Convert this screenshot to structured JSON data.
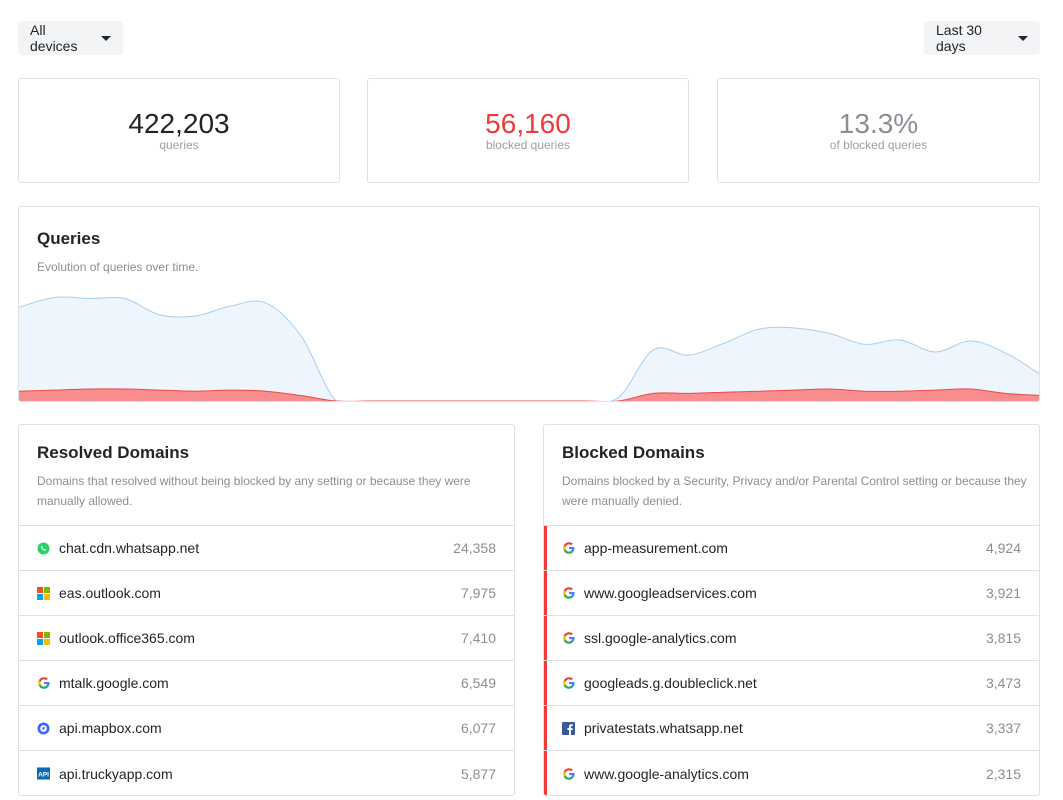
{
  "filters": {
    "devices_label": "All devices",
    "range_label": "Last 30 days"
  },
  "stats": [
    {
      "value": "422,203",
      "label": "queries",
      "color": "#212529"
    },
    {
      "value": "56,160",
      "label": "blocked queries",
      "color": "#ee3a3a"
    },
    {
      "value": "13.3%",
      "label": "of blocked queries",
      "color": "#8a8f94"
    }
  ],
  "queries_chart": {
    "title": "Queries",
    "subtitle": "Evolution of queries over time.",
    "colors": {
      "total_fill": "#eef5fd",
      "total_line": "#a7cff0",
      "blocked_fill": "#f98c8c",
      "blocked_line": "#e94a4a"
    },
    "chart_data": {
      "type": "area",
      "series": [
        {
          "values": [
            0.86,
            0.95,
            0.94,
            0.94,
            0.79,
            0.78,
            0.87,
            0.9,
            0.6,
            0.0,
            0.0,
            0.0,
            0.0,
            0.0,
            0.0,
            0.0,
            0.0,
            0.03,
            0.47,
            0.42,
            0.53,
            0.66,
            0.67,
            0.62,
            0.52,
            0.56,
            0.45,
            0.55,
            0.44,
            0.24
          ]
        },
        {
          "values": [
            0.09,
            0.1,
            0.11,
            0.11,
            0.1,
            0.09,
            0.1,
            0.09,
            0.05,
            0.0,
            0.0,
            0.0,
            0.0,
            0.0,
            0.0,
            0.0,
            0.0,
            0.0,
            0.07,
            0.07,
            0.08,
            0.09,
            0.1,
            0.11,
            0.09,
            0.09,
            0.1,
            0.11,
            0.07,
            0.05
          ]
        }
      ]
    }
  },
  "resolved": {
    "title": "Resolved Domains",
    "subtitle": "Domains that resolved without being blocked by any setting or because they were manually allowed.",
    "items": [
      {
        "domain": "chat.cdn.whatsapp.net",
        "count": "24,358",
        "icon": "whatsapp-icon"
      },
      {
        "domain": "eas.outlook.com",
        "count": "7,975",
        "icon": "microsoft-icon"
      },
      {
        "domain": "outlook.office365.com",
        "count": "7,410",
        "icon": "microsoft-icon"
      },
      {
        "domain": "mtalk.google.com",
        "count": "6,549",
        "icon": "google-icon"
      },
      {
        "domain": "api.mapbox.com",
        "count": "6,077",
        "icon": "mapbox-icon"
      },
      {
        "domain": "api.truckyapp.com",
        "count": "5,877",
        "icon": "api-icon"
      }
    ]
  },
  "blocked": {
    "title": "Blocked Domains",
    "subtitle": "Domains blocked by a Security, Privacy and/or Parental Control setting or because they were manually denied.",
    "items": [
      {
        "domain": "app-measurement.com",
        "count": "4,924",
        "icon": "google-icon"
      },
      {
        "domain": "www.googleadservices.com",
        "count": "3,921",
        "icon": "google-icon"
      },
      {
        "domain": "ssl.google-analytics.com",
        "count": "3,815",
        "icon": "google-icon"
      },
      {
        "domain": "googleads.g.doubleclick.net",
        "count": "3,473",
        "icon": "google-icon"
      },
      {
        "domain": "privatestats.whatsapp.net",
        "count": "3,337",
        "icon": "facebook-icon"
      },
      {
        "domain": "www.google-analytics.com",
        "count": "2,315",
        "icon": "google-icon"
      }
    ]
  }
}
